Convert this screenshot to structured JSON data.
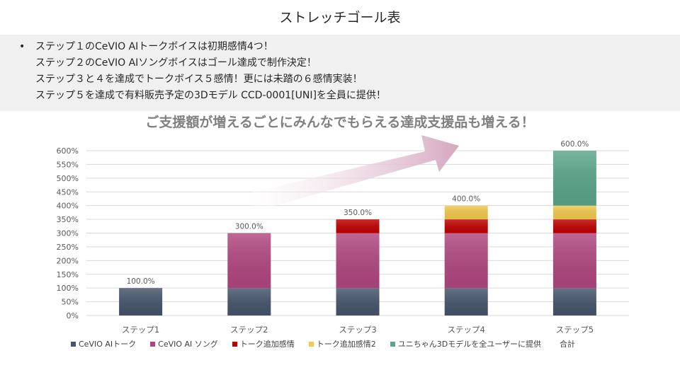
{
  "slide": {
    "title": "ストレッチゴール表",
    "bullet_marker": "•",
    "bullets": [
      "ステップ１のCeVIO AIトークボイスは初期感情4つ！",
      "ステップ２のCeVIO AIソングボイスはゴール達成で制作決定！",
      "ステップ３と４を達成でトークボイス５感情！更には未踏の６感情実装！",
      "ステップ５を達成で有料販売予定の3Dモデル CCD-0001[UNI]を全員に提供！"
    ],
    "headline": "ご支援額が増えるごとにみんなでもらえる達成支援品も増える！"
  },
  "colors": {
    "talk": "#44546a",
    "song": "#b0467f",
    "talk_add": "#c00000",
    "talk_add2": "#f2c94c",
    "model3d": "#5aa58a",
    "arrow": "#d5a7bf",
    "grid": "#d9d9d9",
    "axis_text": "#595959"
  },
  "chart_data": {
    "type": "bar",
    "stacked": true,
    "categories": [
      "ステップ1",
      "ステップ2",
      "ステップ3",
      "ステップ4",
      "ステップ5"
    ],
    "series": [
      {
        "name": "CeVIO AIトーク",
        "color_key": "talk",
        "values": [
          100,
          100,
          100,
          100,
          100
        ]
      },
      {
        "name": "CeVIO AI ソング",
        "color_key": "song",
        "values": [
          0,
          200,
          200,
          200,
          200
        ]
      },
      {
        "name": "トーク追加感情",
        "color_key": "talk_add",
        "values": [
          0,
          0,
          50,
          50,
          50
        ]
      },
      {
        "name": "トーク追加感情2",
        "color_key": "talk_add2",
        "values": [
          0,
          0,
          0,
          50,
          50
        ]
      },
      {
        "name": "ユニちゃん3Dモデルを全ユーザーに提供",
        "color_key": "model3d",
        "values": [
          0,
          0,
          0,
          0,
          200
        ]
      }
    ],
    "totals_label": "合計",
    "totals": [
      "100.0%",
      "300.0%",
      "350.0%",
      "400.0%",
      "600.0%"
    ],
    "ylim": [
      0,
      600
    ],
    "yticks": [
      "0%",
      "50%",
      "100%",
      "150%",
      "200%",
      "250%",
      "300%",
      "350%",
      "400%",
      "450%",
      "500%",
      "550%",
      "600%"
    ],
    "legend_position": "bottom"
  }
}
